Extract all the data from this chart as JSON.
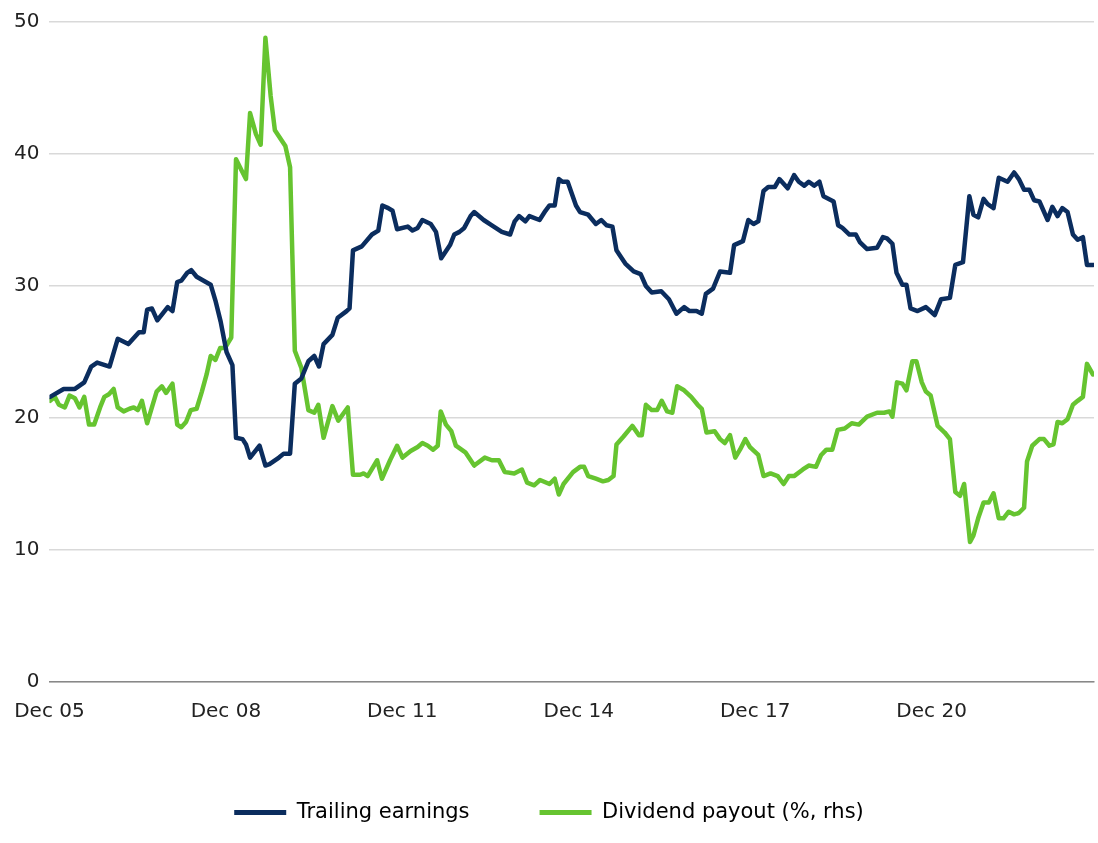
{
  "chart_data": {
    "type": "line",
    "legend": "bottom",
    "grid": "y",
    "marker": "none",
    "line_style": "solid",
    "xlim": [
      "2005-12",
      "2023-09-05"
    ],
    "xticks": [
      {
        "value": "2005-12",
        "label": "Dec 05"
      },
      {
        "value": "2008-12",
        "label": "Dec 08"
      },
      {
        "value": "2011-12",
        "label": "Dec 11"
      },
      {
        "value": "2014-12",
        "label": "Dec 14"
      },
      {
        "value": "2017-12",
        "label": "Dec 17"
      },
      {
        "value": "2020-12",
        "label": "Dec 20"
      }
    ],
    "ylim": [
      0,
      50
    ],
    "yticks": [
      0,
      10,
      20,
      30,
      40,
      50
    ],
    "series": [
      {
        "name": "Trailing earnings",
        "color": "#0b2d5e",
        "x": [
          "2005-12-05",
          "2006-02-28",
          "2006-05-07",
          "2006-07-04",
          "2006-08-17",
          "2006-09-23",
          "2006-12-09",
          "2007-01-29",
          "2007-04-04",
          "2007-06-09",
          "2007-07-08",
          "2007-07-29",
          "2007-08-28",
          "2007-10-01",
          "2007-12-05",
          "2008-01-04",
          "2008-02-03",
          "2008-02-28",
          "2008-04-04",
          "2008-04-29",
          "2008-06-02",
          "2008-08-28",
          "2008-09-27",
          "2008-10-29",
          "2008-12-05",
          "2009-01-11",
          "2009-02-03",
          "2009-03-13",
          "2009-04-04",
          "2009-04-29",
          "2009-06-27",
          "2009-08-03",
          "2009-08-28",
          "2009-10-26",
          "2009-11-25",
          "2010-01-04",
          "2010-02-03",
          "2010-03-13",
          "2010-04-26",
          "2010-06-02",
          "2010-07-01",
          "2010-07-29",
          "2010-09-23",
          "2010-10-26",
          "2010-12-20",
          "2011-01-08",
          "2011-01-29",
          "2011-03-23",
          "2011-05-25",
          "2011-07-04",
          "2011-07-29",
          "2011-09-05",
          "2011-10-01",
          "2011-10-29",
          "2012-01-04",
          "2012-02-03",
          "2012-03-05",
          "2012-04-04",
          "2012-05-25",
          "2012-06-27",
          "2012-07-29",
          "2012-09-23",
          "2012-10-19",
          "2012-11-21",
          "2012-12-20",
          "2013-01-29",
          "2013-02-21",
          "2013-04-19",
          "2013-06-09",
          "2013-08-10",
          "2013-10-01",
          "2013-10-29",
          "2013-11-25",
          "2014-01-04",
          "2014-01-29",
          "2014-04-01",
          "2014-05-07",
          "2014-06-02",
          "2014-07-04",
          "2014-07-29",
          "2014-08-21",
          "2014-09-23",
          "2014-11-14",
          "2014-12-09",
          "2015-01-29",
          "2015-03-16",
          "2015-04-19",
          "2015-05-21",
          "2015-06-27",
          "2015-07-22",
          "2015-09-16",
          "2015-11-07",
          "2015-12-20",
          "2016-01-22",
          "2016-02-28",
          "2016-04-26",
          "2016-06-13",
          "2016-07-29",
          "2016-09-16",
          "2016-10-19",
          "2016-12-02",
          "2017-01-04",
          "2017-01-29",
          "2017-03-13",
          "2017-04-26",
          "2017-06-27",
          "2017-07-22",
          "2017-09-16",
          "2017-10-19",
          "2017-11-21",
          "2017-12-20",
          "2018-01-22",
          "2018-02-21",
          "2018-04-01",
          "2018-04-29",
          "2018-06-20",
          "2018-07-29",
          "2018-08-28",
          "2018-10-01",
          "2018-10-29",
          "2018-12-02",
          "2019-01-04",
          "2019-01-29",
          "2019-04-01",
          "2019-04-29",
          "2019-05-25",
          "2019-07-08",
          "2019-08-17",
          "2019-09-13",
          "2019-10-26",
          "2019-12-27",
          "2020-02-03",
          "2020-02-28",
          "2020-04-01",
          "2020-04-26",
          "2020-06-02",
          "2020-06-27",
          "2020-07-22",
          "2020-09-05",
          "2020-10-26",
          "2020-12-20",
          "2021-01-29",
          "2021-03-23",
          "2021-04-26",
          "2021-06-13",
          "2021-07-22",
          "2021-08-17",
          "2021-09-16",
          "2021-10-19",
          "2021-11-14",
          "2021-12-20",
          "2022-01-22",
          "2022-03-16",
          "2022-04-26",
          "2022-05-25",
          "2022-06-27",
          "2022-07-29",
          "2022-08-28",
          "2022-10-01",
          "2022-11-21",
          "2022-12-20",
          "2023-01-22",
          "2023-02-21",
          "2023-03-23",
          "2023-04-26",
          "2023-05-25",
          "2023-06-27",
          "2023-07-22",
          "2023-08-28"
        ],
        "values": [
          21.6,
          22.2,
          22.2,
          22.7,
          23.9,
          24.2,
          23.9,
          26.0,
          25.6,
          26.5,
          26.5,
          28.2,
          28.3,
          27.4,
          28.4,
          28.1,
          30.3,
          30.4,
          31.0,
          31.2,
          30.7,
          30.1,
          28.9,
          27.3,
          25.0,
          24.0,
          18.5,
          18.4,
          18.0,
          17.0,
          17.9,
          16.4,
          16.5,
          17.0,
          17.3,
          17.3,
          22.6,
          23.0,
          24.3,
          24.7,
          23.9,
          25.6,
          26.3,
          27.6,
          28.1,
          28.3,
          32.7,
          33.0,
          33.9,
          34.2,
          36.1,
          35.9,
          35.7,
          34.3,
          34.5,
          34.2,
          34.4,
          35.0,
          34.7,
          34.1,
          32.1,
          33.1,
          33.9,
          34.1,
          34.4,
          35.3,
          35.6,
          35.0,
          34.6,
          34.1,
          33.9,
          34.9,
          35.3,
          34.9,
          35.3,
          35.0,
          35.7,
          36.1,
          36.1,
          38.1,
          37.9,
          37.9,
          36.1,
          35.6,
          35.4,
          34.7,
          35.0,
          34.6,
          34.5,
          32.7,
          31.7,
          31.1,
          30.9,
          30.0,
          29.5,
          29.6,
          29.0,
          27.9,
          28.4,
          28.1,
          28.1,
          27.9,
          29.4,
          29.8,
          31.1,
          31.0,
          33.1,
          33.4,
          35.0,
          34.7,
          34.9,
          37.2,
          37.5,
          37.5,
          38.1,
          37.4,
          38.4,
          37.9,
          37.6,
          37.9,
          37.6,
          37.9,
          36.8,
          36.4,
          34.6,
          34.4,
          33.9,
          33.9,
          33.3,
          32.8,
          32.9,
          33.7,
          33.6,
          33.2,
          31.0,
          30.1,
          30.1,
          28.3,
          28.1,
          28.4,
          27.8,
          29.0,
          29.1,
          31.6,
          31.8,
          36.8,
          35.4,
          35.2,
          36.6,
          36.2,
          35.9,
          38.2,
          37.9,
          38.6,
          38.1,
          37.3,
          37.3,
          36.5,
          36.4,
          35.0,
          36.0,
          35.3,
          35.9,
          35.6,
          33.9,
          33.5,
          33.7,
          31.6,
          31.6
        ]
      },
      {
        "name": "Dividend payout (%, rhs)",
        "color": "#66c430",
        "x": [
          "2005-12-05",
          "2006-01-04",
          "2006-01-29",
          "2006-03-05",
          "2006-04-04",
          "2006-05-07",
          "2006-06-05",
          "2006-07-04",
          "2006-08-03",
          "2006-09-05",
          "2006-10-11",
          "2006-11-07",
          "2006-12-05",
          "2007-01-04",
          "2007-01-29",
          "2007-03-05",
          "2007-04-11",
          "2007-05-07",
          "2007-06-02",
          "2007-06-27",
          "2007-07-29",
          "2007-09-27",
          "2007-10-29",
          "2007-11-25",
          "2008-01-04",
          "2008-02-03",
          "2008-02-28",
          "2008-03-27",
          "2008-04-26",
          "2008-06-02",
          "2008-07-04",
          "2008-08-03",
          "2008-08-28",
          "2008-09-27",
          "2008-10-26",
          "2008-11-25",
          "2009-01-04",
          "2009-02-03",
          "2009-03-05",
          "2009-04-04",
          "2009-04-29",
          "2009-06-05",
          "2009-07-04",
          "2009-08-03",
          "2009-09-05",
          "2009-10-01",
          "2009-12-05",
          "2010-01-04",
          "2010-02-03",
          "2010-03-13",
          "2010-04-26",
          "2010-06-02",
          "2010-06-27",
          "2010-07-29",
          "2010-09-23",
          "2010-10-29",
          "2010-12-27",
          "2011-01-29",
          "2011-03-13",
          "2011-04-04",
          "2011-04-29",
          "2011-06-27",
          "2011-07-26",
          "2011-09-16",
          "2011-10-29",
          "2011-12-02",
          "2012-01-22",
          "2012-03-05",
          "2012-04-04",
          "2012-05-07",
          "2012-06-09",
          "2012-07-08",
          "2012-07-26",
          "2012-08-28",
          "2012-10-01",
          "2012-10-29",
          "2012-12-27",
          "2013-02-21",
          "2013-04-26",
          "2013-06-09",
          "2013-07-22",
          "2013-08-28",
          "2013-10-26",
          "2013-12-13",
          "2014-01-15",
          "2014-02-28",
          "2014-04-04",
          "2014-06-02",
          "2014-07-04",
          "2014-07-29",
          "2014-08-28",
          "2014-10-26",
          "2014-12-09",
          "2015-01-04",
          "2015-01-29",
          "2015-03-16",
          "2015-04-29",
          "2015-06-02",
          "2015-07-04",
          "2015-07-22",
          "2015-09-05",
          "2015-10-29",
          "2015-12-09",
          "2015-12-27",
          "2016-01-22",
          "2016-02-28",
          "2016-04-01",
          "2016-04-29",
          "2016-06-02",
          "2016-07-04",
          "2016-08-03",
          "2016-09-16",
          "2016-10-29",
          "2016-12-09",
          "2017-01-04",
          "2017-02-03",
          "2017-03-23",
          "2017-04-26",
          "2017-05-25",
          "2017-06-27",
          "2017-07-29",
          "2017-08-28",
          "2017-10-01",
          "2017-10-29",
          "2017-12-20",
          "2018-01-22",
          "2018-03-05",
          "2018-04-19",
          "2018-05-25",
          "2018-06-27",
          "2018-07-29",
          "2018-09-23",
          "2018-10-29",
          "2018-12-13",
          "2019-01-15",
          "2019-02-17",
          "2019-03-23",
          "2019-04-26",
          "2019-06-09",
          "2019-07-22",
          "2019-09-05",
          "2019-10-26",
          "2019-12-27",
          "2020-02-10",
          "2020-03-13",
          "2020-04-01",
          "2020-04-29",
          "2020-06-02",
          "2020-06-27",
          "2020-08-03",
          "2020-08-28",
          "2020-10-01",
          "2020-10-26",
          "2020-11-25",
          "2021-01-08",
          "2021-02-21",
          "2021-03-23",
          "2021-04-26",
          "2021-05-25",
          "2021-06-20",
          "2021-07-26",
          "2021-08-17",
          "2021-09-16",
          "2021-10-19",
          "2021-11-21",
          "2021-12-20",
          "2022-01-22",
          "2022-02-21",
          "2022-03-23",
          "2022-04-26",
          "2022-05-25",
          "2022-06-27",
          "2022-07-15",
          "2022-08-17",
          "2022-10-01",
          "2022-10-29",
          "2022-12-02",
          "2022-12-27",
          "2023-01-22",
          "2023-02-21",
          "2023-03-23",
          "2023-04-26",
          "2023-05-25",
          "2023-06-27",
          "2023-07-22",
          "2023-08-28"
        ],
        "values": [
          21.3,
          21.6,
          21.0,
          20.8,
          21.7,
          21.5,
          20.8,
          21.6,
          19.5,
          19.5,
          20.8,
          21.6,
          21.8,
          22.2,
          20.8,
          20.5,
          20.7,
          20.8,
          20.6,
          21.3,
          19.6,
          22.0,
          22.4,
          21.9,
          22.6,
          19.5,
          19.3,
          19.7,
          20.6,
          20.7,
          22.0,
          23.3,
          24.7,
          24.4,
          25.3,
          25.3,
          26.1,
          39.6,
          38.8,
          38.1,
          43.1,
          41.5,
          40.7,
          48.8,
          44.4,
          41.8,
          40.6,
          39.0,
          25.1,
          23.8,
          20.6,
          20.4,
          21.0,
          18.5,
          20.9,
          19.8,
          20.8,
          15.7,
          15.7,
          15.8,
          15.6,
          16.8,
          15.4,
          16.8,
          17.9,
          17.0,
          17.5,
          17.8,
          18.1,
          17.9,
          17.6,
          17.9,
          20.5,
          19.5,
          19.0,
          17.9,
          17.4,
          16.4,
          17.0,
          16.8,
          16.8,
          15.9,
          15.8,
          16.1,
          15.1,
          14.9,
          15.3,
          15.0,
          15.4,
          14.2,
          15.0,
          15.9,
          16.3,
          16.3,
          15.6,
          15.4,
          15.2,
          15.3,
          15.6,
          18.0,
          18.6,
          19.4,
          18.7,
          18.7,
          21.0,
          20.6,
          20.6,
          21.3,
          20.5,
          20.4,
          22.4,
          22.1,
          21.6,
          21.0,
          20.7,
          18.9,
          19.0,
          18.4,
          18.1,
          18.7,
          17.0,
          17.6,
          18.4,
          17.8,
          17.2,
          15.6,
          15.8,
          15.6,
          15.0,
          15.6,
          15.6,
          16.1,
          16.4,
          16.3,
          17.2,
          17.6,
          17.6,
          19.1,
          19.2,
          19.6,
          19.5,
          20.1,
          20.4,
          20.4,
          20.5,
          20.1,
          22.7,
          22.6,
          22.1,
          24.3,
          24.3,
          22.7,
          22.0,
          21.7,
          19.4,
          18.9,
          18.4,
          14.4,
          14.1,
          15.0,
          10.6,
          11.1,
          12.4,
          13.6,
          13.6,
          14.3,
          12.4,
          12.4,
          12.9,
          12.7,
          12.8,
          13.2,
          16.7,
          17.9,
          18.4,
          18.4,
          17.9,
          18.0,
          19.7,
          19.6,
          19.9,
          21.0,
          21.3,
          21.6,
          24.1,
          23.3
        ]
      }
    ]
  }
}
